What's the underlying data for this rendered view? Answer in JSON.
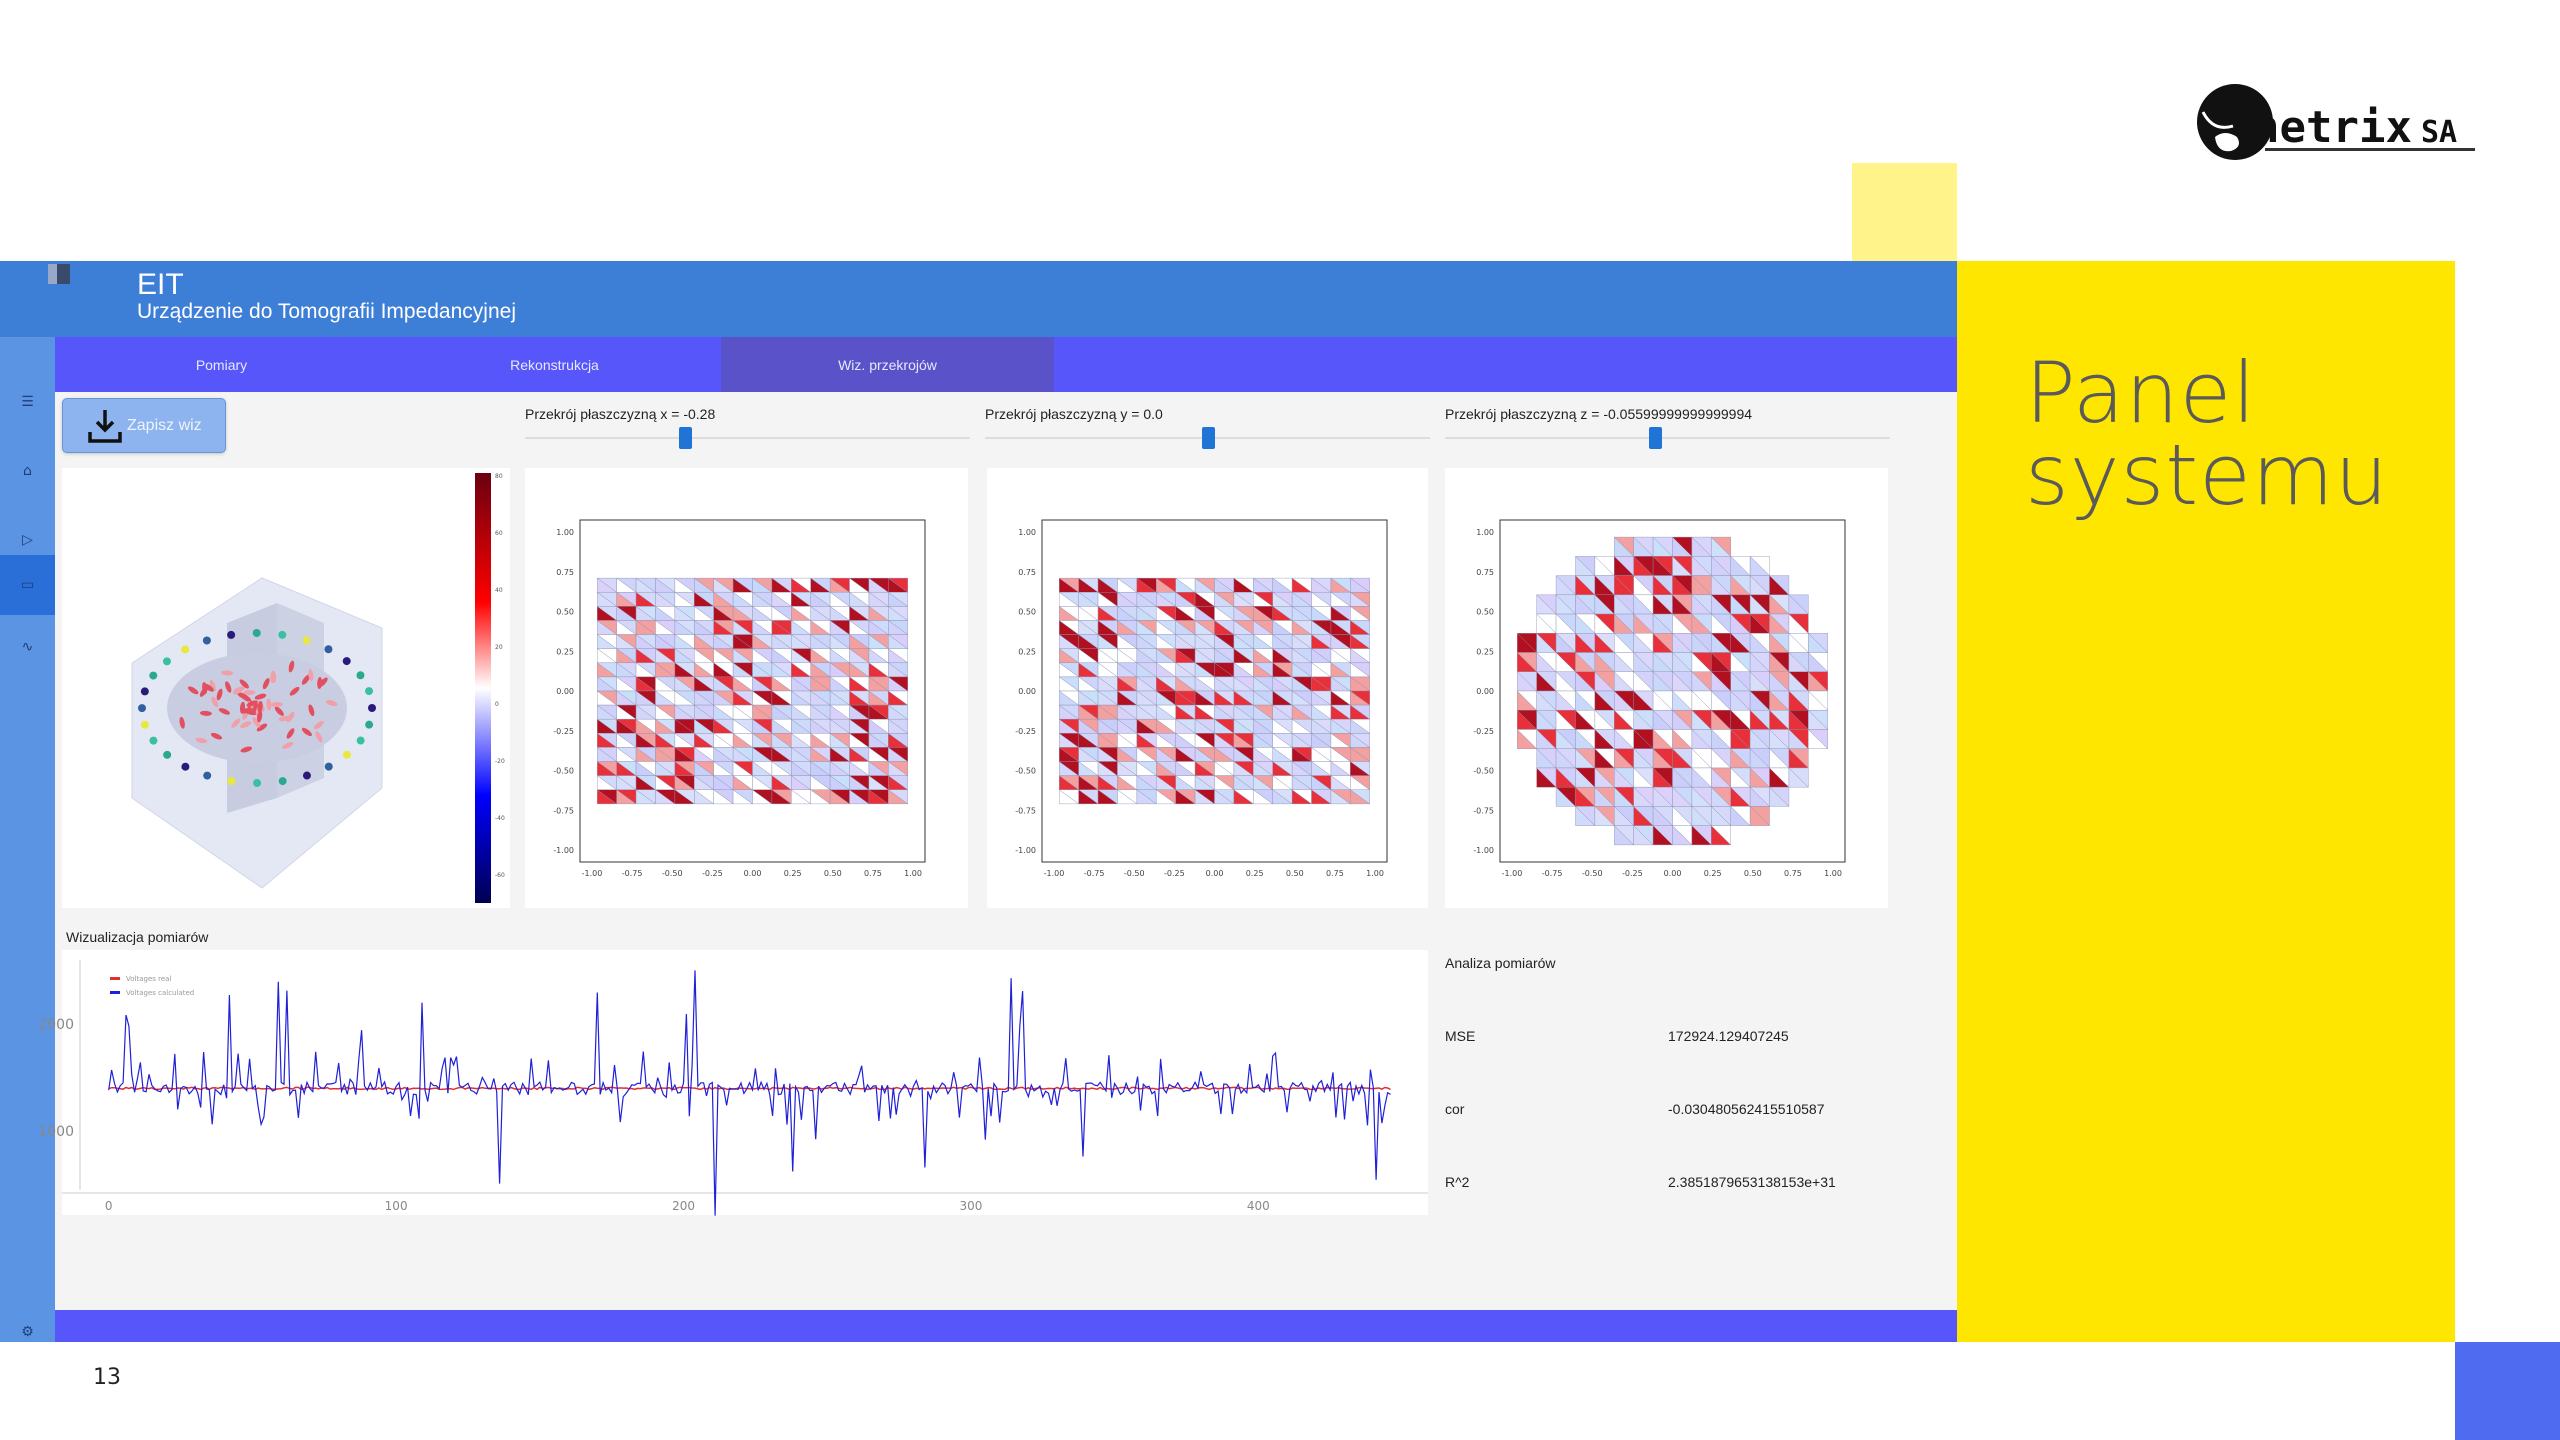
{
  "slide": {
    "page_number": "13",
    "title": "Panel\nsystemu",
    "logo_text": "netrix SA"
  },
  "colors": {
    "yellow": "#ffe600",
    "header": "#3d7ed6",
    "tabs": "#5656fa",
    "sidebar": "#5b94e2",
    "accent_blue": "#4f6bf0"
  },
  "app": {
    "title": "EIT",
    "subtitle": "Urządzenie do Tomografii Impedancyjnej"
  },
  "tabs": [
    {
      "label": "Pomiary",
      "active": false
    },
    {
      "label": "Rekonstrukcja",
      "active": false
    },
    {
      "label": "Wiz. przekrojów",
      "active": true
    }
  ],
  "sidebar": {
    "items": [
      "menu-icon",
      "home-icon",
      "play-icon",
      "archive-icon",
      "activity-icon"
    ],
    "active_index": 3,
    "footer": "settings-icon"
  },
  "toolbar": {
    "save_label": "Zapisz wiz",
    "save_icon": "download-icon"
  },
  "sliders": [
    {
      "label": "Przekrój płaszczyzną x = -0.28",
      "value": -0.28
    },
    {
      "label": "Przekrój płaszczyzną y = 0.0",
      "value": 0.0
    },
    {
      "label": "Przekrój płaszczyzną z = -0.05599999999999994",
      "value": -0.056
    }
  ],
  "colorbar": {
    "ticks": [
      "80",
      "60",
      "40",
      "20",
      "0",
      "-20",
      "-40",
      "-60"
    ],
    "range": [
      -70,
      85
    ]
  },
  "slice_plots": {
    "ticks": [
      "-1.00",
      "-0.75",
      "-0.50",
      "-0.25",
      "0.00",
      "0.25",
      "0.50",
      "0.75",
      "1.00"
    ]
  },
  "measurements": {
    "title": "Wizualizacja pomiarów",
    "legend": [
      "Voltages real",
      "Voltages calculated"
    ],
    "x_ticks": [
      "0",
      "100",
      "200",
      "300",
      "400"
    ],
    "y_ticks": [
      "1000",
      "2000"
    ],
    "xlim": [
      -10,
      450
    ],
    "ylim": [
      450,
      2600
    ]
  },
  "analysis": {
    "title": "Analiza pomiarów",
    "rows": [
      {
        "label": "MSE",
        "value": "172924.129407245"
      },
      {
        "label": "cor",
        "value": "-0.030480562415510587"
      },
      {
        "label": "R^2",
        "value": "2.3851879653138153e+31"
      }
    ]
  }
}
